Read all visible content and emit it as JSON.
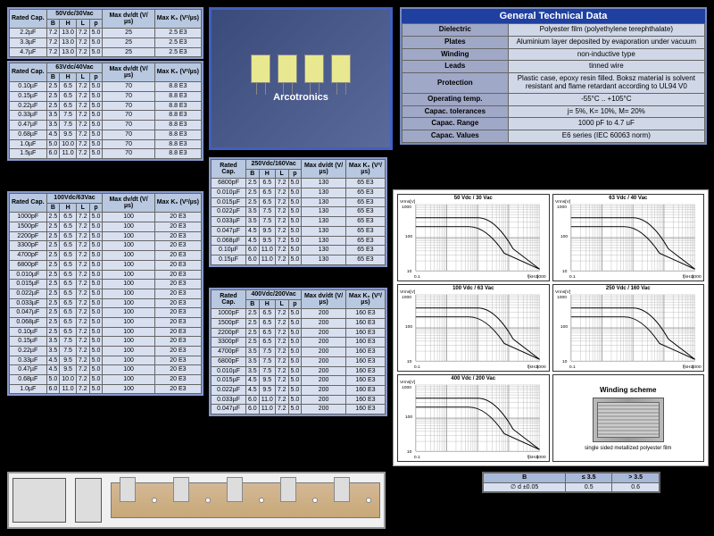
{
  "photo_label": "Arcotronics",
  "gtd": {
    "title": "General Technical Data",
    "rows": [
      {
        "label": "Dielectric",
        "val": "Polyester film (polyethylene terephthalate)"
      },
      {
        "label": "Plates",
        "val": "Aluminium layer deposited by evaporation under vacuum"
      },
      {
        "label": "Winding",
        "val": "non-inductive type"
      },
      {
        "label": "Leads",
        "val": "tinned wire"
      },
      {
        "label": "Protection",
        "val": "Plastic case, epoxy resin filled. Boksz material is solvent resistant and flame retardant according to UL94 V0"
      },
      {
        "label": "Operating temp.",
        "val": "-55°C .. +105°C"
      },
      {
        "label": "Capac. tolerances",
        "val": "j= 5%, K= 10%, M= 20%"
      },
      {
        "label": "Capac. Range",
        "val": "1000 pF to 4.7 uF"
      },
      {
        "label": "Capac. Values",
        "val": "E6 series (IEC 60063 norm)"
      }
    ]
  },
  "cols": [
    "Rated Cap.",
    "B",
    "H",
    "L",
    "p",
    "Max dv/dt (V/µs)",
    "Max K₀ (V²/µs)"
  ],
  "t1": {
    "header": "50Vdc/30Vac",
    "rows": [
      [
        "2.2µF",
        "7.2",
        "13.0",
        "7.2",
        "5.0",
        "25",
        "2.5 E3"
      ],
      [
        "3.3µF",
        "7.2",
        "13.0",
        "7.2",
        "5.0",
        "25",
        "2.5 E3"
      ],
      [
        "4.7µF",
        "7.2",
        "13.0",
        "7.2",
        "5.0",
        "25",
        "2.5 E3"
      ]
    ]
  },
  "t2": {
    "header": "63Vdc/40Vac",
    "rows": [
      [
        "0.10µF",
        "2.5",
        "6.5",
        "7.2",
        "5.0",
        "70",
        "8.8 E3"
      ],
      [
        "0.15µF",
        "2.5",
        "6.5",
        "7.2",
        "5.0",
        "70",
        "8.8 E3"
      ],
      [
        "0.22µF",
        "2.5",
        "6.5",
        "7.2",
        "5.0",
        "70",
        "8.8 E3"
      ],
      [
        "0.33µF",
        "3.5",
        "7.5",
        "7.2",
        "5.0",
        "70",
        "8.8 E3"
      ],
      [
        "0.47µF",
        "3.5",
        "7.5",
        "7.2",
        "5.0",
        "70",
        "8.8 E3"
      ],
      [
        "0.68µF",
        "4.5",
        "9.5",
        "7.2",
        "5.0",
        "70",
        "8.8 E3"
      ],
      [
        "1.0µF",
        "5.0",
        "10.0",
        "7.2",
        "5.0",
        "70",
        "8.8 E3"
      ],
      [
        "1.5µF",
        "6.0",
        "11.0",
        "7.2",
        "5.0",
        "70",
        "8.8 E3"
      ]
    ]
  },
  "t3": {
    "header": "100Vdc/63Vac",
    "rows": [
      [
        "1000pF",
        "2.5",
        "6.5",
        "7.2",
        "5.0",
        "100",
        "20 E3"
      ],
      [
        "1500pF",
        "2.5",
        "6.5",
        "7.2",
        "5.0",
        "100",
        "20 E3"
      ],
      [
        "2200pF",
        "2.5",
        "6.5",
        "7.2",
        "5.0",
        "100",
        "20 E3"
      ],
      [
        "3300pF",
        "2.5",
        "6.5",
        "7.2",
        "5.0",
        "100",
        "20 E3"
      ],
      [
        "4700pF",
        "2.5",
        "6.5",
        "7.2",
        "5.0",
        "100",
        "20 E3"
      ],
      [
        "6800pF",
        "2.5",
        "6.5",
        "7.2",
        "5.0",
        "100",
        "20 E3"
      ],
      [
        "0.010µF",
        "2.5",
        "6.5",
        "7.2",
        "5.0",
        "100",
        "20 E3"
      ],
      [
        "0.015µF",
        "2.5",
        "6.5",
        "7.2",
        "5.0",
        "100",
        "20 E3"
      ],
      [
        "0.022µF",
        "2.5",
        "6.5",
        "7.2",
        "5.0",
        "100",
        "20 E3"
      ],
      [
        "0.033µF",
        "2.5",
        "6.5",
        "7.2",
        "5.0",
        "100",
        "20 E3"
      ],
      [
        "0.047µF",
        "2.5",
        "6.5",
        "7.2",
        "5.0",
        "100",
        "20 E3"
      ],
      [
        "0.068µF",
        "2.5",
        "6.5",
        "7.2",
        "5.0",
        "100",
        "20 E3"
      ],
      [
        "0.10µF",
        "2.5",
        "6.5",
        "7.2",
        "5.0",
        "100",
        "20 E3"
      ],
      [
        "0.15µF",
        "3.5",
        "7.5",
        "7.2",
        "5.0",
        "100",
        "20 E3"
      ],
      [
        "0.22µF",
        "3.5",
        "7.5",
        "7.2",
        "5.0",
        "100",
        "20 E3"
      ],
      [
        "0.33µF",
        "4.5",
        "9.5",
        "7.2",
        "5.0",
        "100",
        "20 E3"
      ],
      [
        "0.47µF",
        "4.5",
        "9.5",
        "7.2",
        "5.0",
        "100",
        "20 E3"
      ],
      [
        "0.68µF",
        "5.0",
        "10.0",
        "7.2",
        "5.0",
        "100",
        "20 E3"
      ],
      [
        "1.0µF",
        "6.0",
        "11.0",
        "7.2",
        "5.0",
        "100",
        "20 E3"
      ]
    ]
  },
  "t4": {
    "header": "250Vdc/160Vac",
    "rows": [
      [
        "6800pF",
        "2.5",
        "6.5",
        "7.2",
        "5.0",
        "130",
        "65 E3"
      ],
      [
        "0.010µF",
        "2.5",
        "6.5",
        "7.2",
        "5.0",
        "130",
        "65 E3"
      ],
      [
        "0.015µF",
        "2.5",
        "6.5",
        "7.2",
        "5.0",
        "130",
        "65 E3"
      ],
      [
        "0.022µF",
        "3.5",
        "7.5",
        "7.2",
        "5.0",
        "130",
        "65 E3"
      ],
      [
        "0.033µF",
        "3.5",
        "7.5",
        "7.2",
        "5.0",
        "130",
        "65 E3"
      ],
      [
        "0.047µF",
        "4.5",
        "9.5",
        "7.2",
        "5.0",
        "130",
        "65 E3"
      ],
      [
        "0.068µF",
        "4.5",
        "9.5",
        "7.2",
        "5.0",
        "130",
        "65 E3"
      ],
      [
        "0.10µF",
        "6.0",
        "11.0",
        "7.2",
        "5.0",
        "130",
        "65 E3"
      ],
      [
        "0.15µF",
        "6.0",
        "11.0",
        "7.2",
        "5.0",
        "130",
        "65 E3"
      ]
    ]
  },
  "t5": {
    "header": "400Vdc/200Vac",
    "rows": [
      [
        "1000pF",
        "2.5",
        "6.5",
        "7.2",
        "5.0",
        "200",
        "160 E3"
      ],
      [
        "1500pF",
        "2.5",
        "6.5",
        "7.2",
        "5.0",
        "200",
        "160 E3"
      ],
      [
        "2200pF",
        "2.5",
        "6.5",
        "7.2",
        "5.0",
        "200",
        "160 E3"
      ],
      [
        "3300pF",
        "2.5",
        "6.5",
        "7.2",
        "5.0",
        "200",
        "160 E3"
      ],
      [
        "4700pF",
        "3.5",
        "7.5",
        "7.2",
        "5.0",
        "200",
        "160 E3"
      ],
      [
        "6800pF",
        "3.5",
        "7.5",
        "7.2",
        "5.0",
        "200",
        "160 E3"
      ],
      [
        "0.010µF",
        "3.5",
        "7.5",
        "7.2",
        "5.0",
        "200",
        "160 E3"
      ],
      [
        "0.015µF",
        "4.5",
        "9.5",
        "7.2",
        "5.0",
        "200",
        "160 E3"
      ],
      [
        "0.022µF",
        "4.5",
        "9.5",
        "7.2",
        "5.0",
        "200",
        "160 E3"
      ],
      [
        "0.033µF",
        "6.0",
        "11.0",
        "7.2",
        "5.0",
        "200",
        "160 E3"
      ],
      [
        "0.047µF",
        "6.0",
        "11.0",
        "7.2",
        "5.0",
        "200",
        "160 E3"
      ]
    ]
  },
  "chart_titles": [
    "50 Vdc / 30 Vac",
    "63 Vdc / 40 Vac",
    "100 Vdc / 63 Vac",
    "250 Vdc / 160 Vac",
    "400 Vdc / 200 Vac"
  ],
  "winding_title": "Winding scheme",
  "winding_note": "single sided metallized polyester film",
  "small_table": {
    "cols": [
      "B",
      "≤ 3.5",
      "> 3.5"
    ],
    "rows": [
      [
        "∅ d ±0.05",
        "0.5",
        "0.6"
      ]
    ]
  },
  "chart_axis": {
    "ylabel": "Vrms [V]",
    "xlabel": "f [kHz]",
    "ymin": 10,
    "ymax": 1000,
    "xmin": 0.1,
    "xmax": 1000
  }
}
